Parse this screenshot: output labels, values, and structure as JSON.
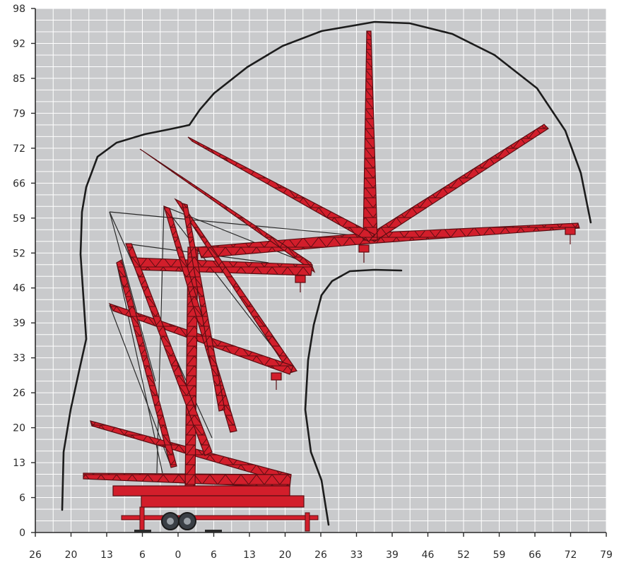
{
  "chart_data": {
    "type": "working-range-diagram",
    "x_ticks": [
      "26",
      "20",
      "13",
      "6",
      "0",
      "6",
      "13",
      "20",
      "26",
      "33",
      "39",
      "46",
      "52",
      "59",
      "66",
      "72",
      "79"
    ],
    "y_ticks": [
      "0",
      "6",
      "13",
      "20",
      "26",
      "33",
      "39",
      "46",
      "52",
      "59",
      "66",
      "72",
      "79",
      "85",
      "92",
      "98"
    ],
    "x_minor_per_major": 2,
    "y_minor_per_major": 3,
    "grid": true,
    "colors": {
      "background": "#c9cacc",
      "grid": "#ffffff",
      "boom": "#d21e2b",
      "boom_outline": "#5a0d12",
      "envelope": "#1c1c1c",
      "axis": "#2b2b2b"
    }
  }
}
